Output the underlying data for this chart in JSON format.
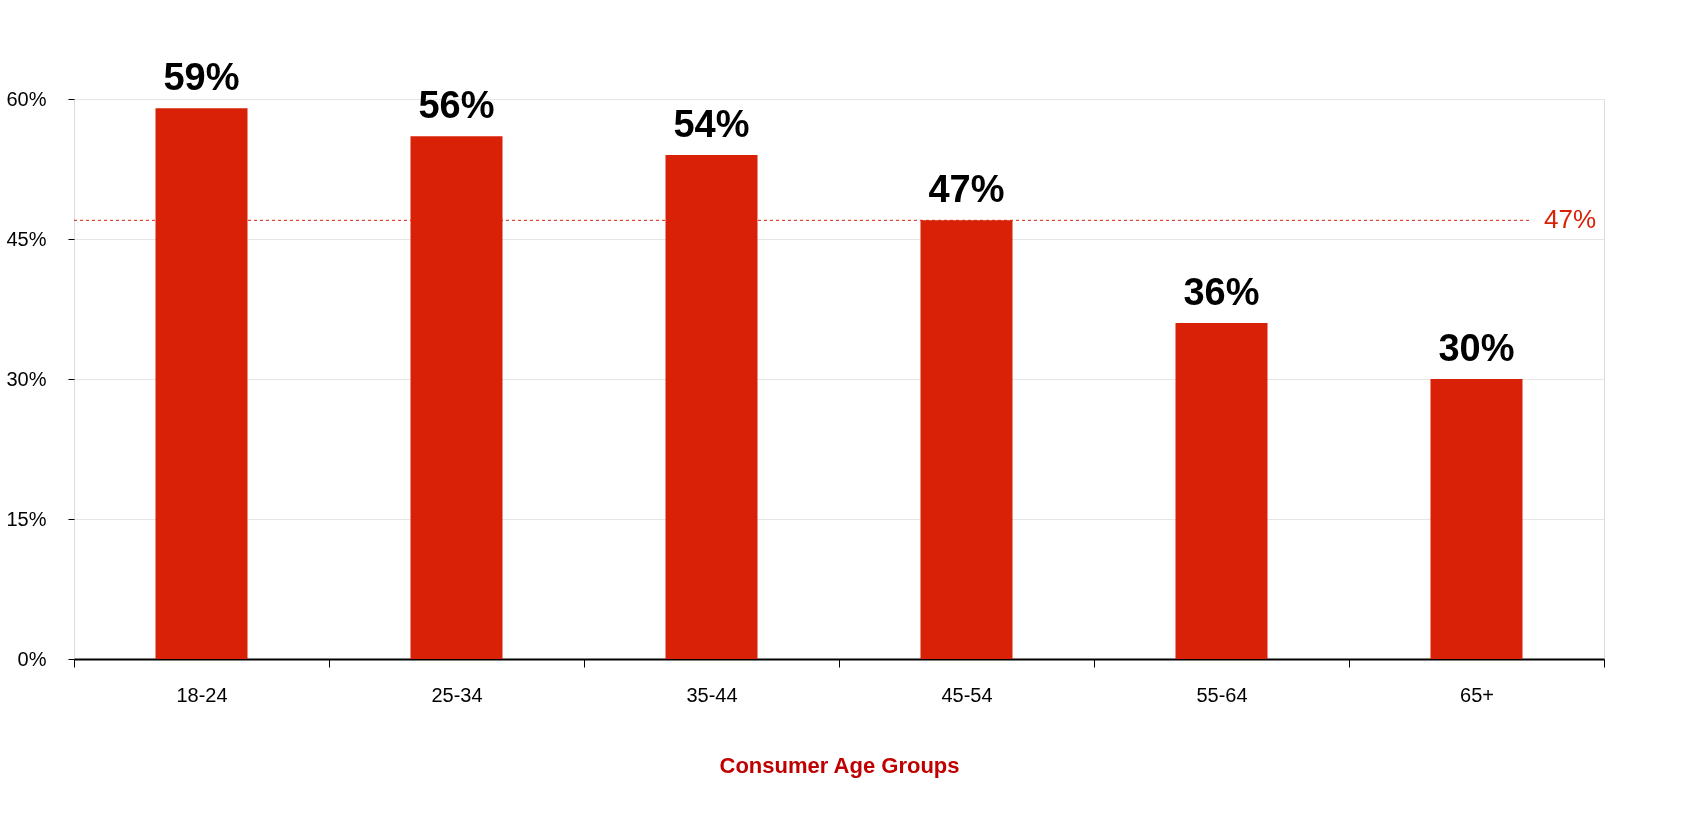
{
  "chart_data": {
    "type": "bar",
    "xlabel": "Consumer Age Groups",
    "categories": [
      "18-24",
      "25-34",
      "35-44",
      "45-54",
      "55-64",
      "65+"
    ],
    "values": [
      59,
      56,
      54,
      47,
      36,
      30
    ],
    "value_labels": [
      "59%",
      "56%",
      "54%",
      "47%",
      "36%",
      "30%"
    ],
    "color": "#d82106",
    "ylim": [
      0,
      60
    ],
    "yticks": [
      {
        "value": 0,
        "label": "0%"
      },
      {
        "value": 15,
        "label": "15%"
      },
      {
        "value": 30,
        "label": "30%"
      },
      {
        "value": 45,
        "label": "45%"
      },
      {
        "value": 60,
        "label": "60%"
      }
    ],
    "ref_lines": [
      {
        "axis": "y",
        "value": 47,
        "label": "47%",
        "color": "#d82106",
        "line_style": "dotted"
      }
    ],
    "grid": "y"
  }
}
